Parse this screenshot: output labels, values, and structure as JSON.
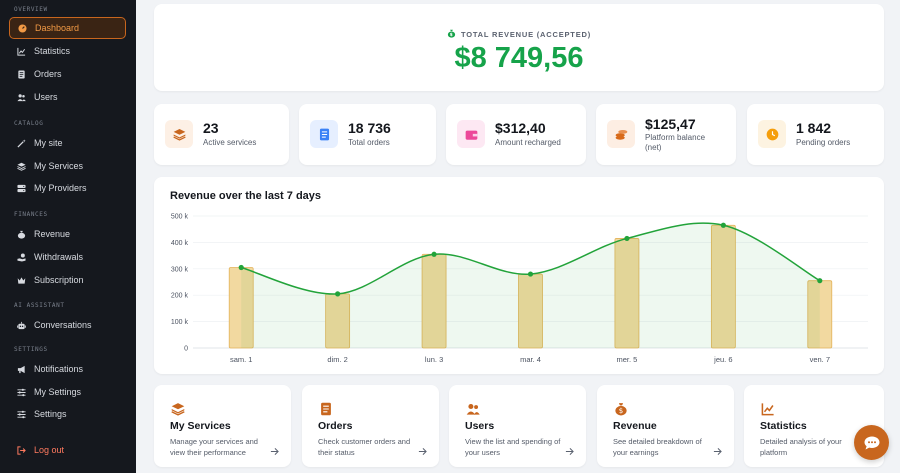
{
  "sidebar": {
    "sections": [
      {
        "title": "OVERVIEW",
        "items": [
          {
            "label": "Dashboard",
            "icon": "dashboard-icon",
            "active": true
          },
          {
            "label": "Statistics",
            "icon": "chart-line-icon"
          },
          {
            "label": "Orders",
            "icon": "orders-icon"
          },
          {
            "label": "Users",
            "icon": "users-icon"
          }
        ]
      },
      {
        "title": "CATALOG",
        "items": [
          {
            "label": "My site",
            "icon": "magic-wand-icon"
          },
          {
            "label": "My Services",
            "icon": "layers-icon"
          },
          {
            "label": "My Providers",
            "icon": "server-icon"
          }
        ]
      },
      {
        "title": "FINANCES",
        "items": [
          {
            "label": "Revenue",
            "icon": "money-bag-icon"
          },
          {
            "label": "Withdrawals",
            "icon": "hand-coins-icon"
          },
          {
            "label": "Subscription",
            "icon": "crown-icon"
          }
        ]
      },
      {
        "title": "AI ASSISTANT",
        "items": [
          {
            "label": "Conversations",
            "icon": "robot-icon"
          }
        ]
      },
      {
        "title": "SETTINGS",
        "items": [
          {
            "label": "Notifications",
            "icon": "megaphone-icon"
          },
          {
            "label": "My Settings",
            "icon": "sliders-icon"
          },
          {
            "label": "Settings",
            "icon": "sliders-icon"
          }
        ]
      }
    ],
    "logout": "Log out"
  },
  "revenue": {
    "label": "TOTAL REVENUE (ACCEPTED)",
    "value": "$8 749,56"
  },
  "stats": [
    {
      "value": "23",
      "label": "Active services",
      "icon": "layers-icon",
      "color": "#c8661e",
      "bg": "#fdf0e5"
    },
    {
      "value": "18 736",
      "label": "Total orders",
      "icon": "document-icon",
      "color": "#3b82f6",
      "bg": "#e6efff"
    },
    {
      "value": "$312,40",
      "label": "Amount recharged",
      "icon": "wallet-icon",
      "color": "#ec4899",
      "bg": "#fde8f3"
    },
    {
      "value": "$125,47",
      "label": "Platform balance (net)",
      "icon": "coins-icon",
      "color": "#d86a1a",
      "bg": "#fdeee3"
    },
    {
      "value": "1 842",
      "label": "Pending orders",
      "icon": "clock-icon",
      "color": "#f59e0b",
      "bg": "#fdf3e1"
    }
  ],
  "chart_data": {
    "type": "bar",
    "title": "Revenue over the last 7 days",
    "categories": [
      "sam. 1",
      "dim. 2",
      "lun. 3",
      "mar. 4",
      "mer. 5",
      "jeu. 6",
      "ven. 7"
    ],
    "values": [
      305000,
      205000,
      355000,
      280000,
      415000,
      465000,
      255000
    ],
    "y_ticks": [
      "0",
      "100 k",
      "200 k",
      "300 k",
      "400 k",
      "500 k"
    ],
    "ylim": [
      0,
      500000
    ],
    "grid": true,
    "overlay": "smooth line with filled area over bars",
    "bar_color": "#f2d9a0",
    "bar_border": "#e3b35a",
    "line_color": "#22a33a"
  },
  "quick_links": [
    {
      "title": "My Services",
      "desc": "Manage your services and view their performance",
      "icon": "layers-icon"
    },
    {
      "title": "Orders",
      "desc": "Check customer orders and their status",
      "icon": "document-icon"
    },
    {
      "title": "Users",
      "desc": "View the list and spending of your users",
      "icon": "users-icon"
    },
    {
      "title": "Revenue",
      "desc": "See detailed breakdown of your earnings",
      "icon": "money-bag-icon"
    },
    {
      "title": "Statistics",
      "desc": "Detailed analysis of your platform",
      "icon": "chart-line-icon"
    }
  ],
  "colors": {
    "accent": "#c8661e",
    "success": "#16a34a",
    "sidebar_bg": "#15181e"
  }
}
